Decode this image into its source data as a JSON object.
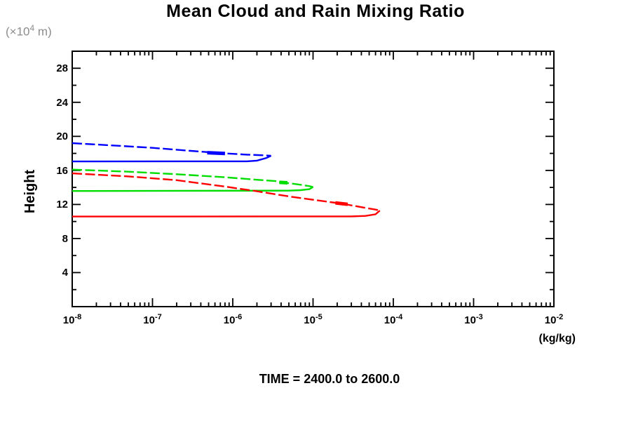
{
  "title": "Mean Cloud and Rain Mixing Ratio",
  "y_axis_unit_note": {
    "prefix": "(×10",
    "exponent": "4",
    "suffix": " m)"
  },
  "y_axis_label": "Height",
  "x_axis_unit": "(kg/kg)",
  "footer": "TIME = 2400.0 to 2600.0",
  "chart_data": {
    "type": "line",
    "title": "Mean Cloud and Rain Mixing Ratio",
    "xlabel": "(kg/kg)",
    "ylabel": "Height (×10^4 m)",
    "x_scale": "log",
    "xlim": [
      1e-08,
      0.01
    ],
    "ylim": [
      0,
      30
    ],
    "x_tick_base": "10",
    "x_tick_exponents": [
      -8,
      -7,
      -6,
      -5,
      -4,
      -3,
      -2
    ],
    "y_major_ticks": [
      4,
      8,
      12,
      16,
      20,
      24,
      28
    ],
    "y_minor_step": 2,
    "grid": false,
    "legend": "none",
    "axis_color": "#000000",
    "series": [
      {
        "name": "series-blue",
        "color": "#0000ff",
        "upper": [
          [
            1e-08,
            19.2
          ],
          [
            3e-08,
            18.95
          ],
          [
            1e-07,
            18.65
          ],
          [
            3e-07,
            18.3
          ],
          [
            8e-07,
            18.0
          ],
          [
            1.5e-06,
            17.85
          ],
          [
            2.4e-06,
            17.78
          ],
          [
            3e-06,
            17.72
          ]
        ],
        "lower": [
          [
            3e-06,
            17.72
          ],
          [
            2.6e-06,
            17.45
          ],
          [
            2e-06,
            17.15
          ],
          [
            1.5e-06,
            17.07
          ],
          [
            1e-08,
            17.05
          ]
        ],
        "marker": [
          [
            4.8e-07,
            18.08
          ],
          [
            8e-07,
            17.98
          ]
        ]
      },
      {
        "name": "series-green",
        "color": "#00dd00",
        "upper": [
          [
            1e-08,
            16.1
          ],
          [
            5e-08,
            15.85
          ],
          [
            2e-07,
            15.55
          ],
          [
            8e-07,
            15.2
          ],
          [
            2e-06,
            14.9
          ],
          [
            3.4e-06,
            14.75
          ],
          [
            3.7e-06,
            14.62
          ],
          [
            5e-06,
            14.5
          ],
          [
            7e-06,
            14.32
          ],
          [
            9e-06,
            14.15
          ],
          [
            1e-05,
            14.05
          ]
        ],
        "lower": [
          [
            1e-05,
            14.05
          ],
          [
            9e-06,
            13.8
          ],
          [
            7e-06,
            13.68
          ],
          [
            5e-06,
            13.62
          ],
          [
            1e-08,
            13.58
          ]
        ],
        "marker": [
          [
            3.8e-06,
            14.6
          ],
          [
            4.8e-06,
            14.55
          ]
        ]
      },
      {
        "name": "series-red",
        "color": "#ff0000",
        "upper": [
          [
            1e-08,
            15.66
          ],
          [
            5e-08,
            15.3
          ],
          [
            2e-07,
            14.85
          ],
          [
            8e-07,
            14.1
          ],
          [
            2e-06,
            13.55
          ],
          [
            5e-06,
            12.95
          ],
          [
            1e-05,
            12.55
          ],
          [
            1.9e-05,
            12.2
          ],
          [
            2.8e-05,
            11.95
          ],
          [
            4.5e-05,
            11.6
          ],
          [
            6e-05,
            11.4
          ],
          [
            6.8e-05,
            11.28
          ]
        ],
        "lower": [
          [
            6.8e-05,
            11.28
          ],
          [
            6e-05,
            10.85
          ],
          [
            4.5e-05,
            10.66
          ],
          [
            3e-05,
            10.6
          ],
          [
            1e-08,
            10.58
          ]
        ],
        "marker": [
          [
            1.9e-05,
            12.18
          ],
          [
            2.7e-05,
            12.02
          ]
        ]
      }
    ]
  }
}
